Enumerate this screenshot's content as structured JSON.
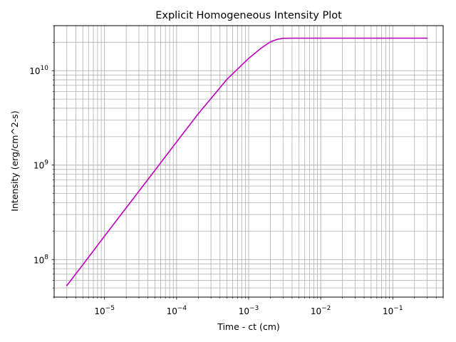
{
  "chart_data": {
    "type": "line",
    "title": "Explicit Homogeneous Intensity Plot",
    "xlabel": "Time - ct (cm)",
    "ylabel": "Intensity (erg/cm^2-s)",
    "xscale": "log",
    "yscale": "log",
    "xlim": [
      2e-06,
      0.5
    ],
    "ylim": [
      40000000.0,
      30000000000.0
    ],
    "grid": "major-and-minor",
    "line_color": "#bf00bf",
    "x_ticks": [
      {
        "base": "10",
        "exp": "−5",
        "value": 1e-05
      },
      {
        "base": "10",
        "exp": "−4",
        "value": 0.0001
      },
      {
        "base": "10",
        "exp": "−3",
        "value": 0.001
      },
      {
        "base": "10",
        "exp": "−2",
        "value": 0.01
      },
      {
        "base": "10",
        "exp": "−1",
        "value": 0.1
      }
    ],
    "y_ticks": [
      {
        "base": "10",
        "exp": "8",
        "value": 100000000.0
      },
      {
        "base": "10",
        "exp": "9",
        "value": 1000000000.0
      },
      {
        "base": "10",
        "exp": "10",
        "value": 10000000000.0
      }
    ],
    "series": [
      {
        "x": [
          3e-06,
          5e-06,
          1e-05,
          2e-05,
          5e-05,
          0.0001,
          0.0002,
          0.0005,
          0.001,
          0.0015,
          0.002,
          0.0025,
          0.003,
          0.004,
          0.006,
          0.01,
          0.03,
          0.1,
          0.3
        ],
        "y": [
          53000000.0,
          88000000.0,
          177000000.0,
          353000000.0,
          880000000.0,
          1760000000.0,
          3500000000.0,
          8100000000.0,
          13500000000.0,
          17400000000.0,
          20200000000.0,
          21500000000.0,
          22000000000.0,
          22100000000.0,
          22100000000.0,
          22100000000.0,
          22100000000.0,
          22100000000.0,
          22100000000.0
        ]
      }
    ]
  }
}
